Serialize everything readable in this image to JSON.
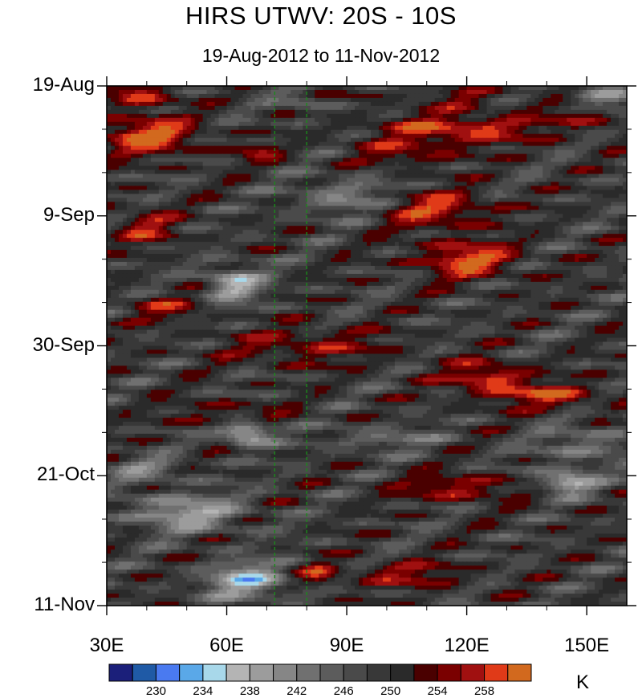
{
  "chart_data": {
    "type": "heatmap",
    "title": "HIRS UTWV: 20S - 10S",
    "subtitle": "19-Aug-2012 to 11-Nov-2012",
    "x": {
      "range": [
        30,
        160
      ],
      "ticks": [
        {
          "value": 30,
          "label": "30E"
        },
        {
          "value": 60,
          "label": "60E"
        },
        {
          "value": 90,
          "label": "90E"
        },
        {
          "value": 120,
          "label": "120E"
        },
        {
          "value": 150,
          "label": "150E"
        }
      ]
    },
    "y": {
      "range_days": [
        0,
        84
      ],
      "ticks": [
        {
          "value": 0,
          "label": "19-Aug"
        },
        {
          "value": 21,
          "label": "9-Sep"
        },
        {
          "value": 42,
          "label": "30-Sep"
        },
        {
          "value": 63,
          "label": "21-Oct"
        },
        {
          "value": 84,
          "label": "11-Nov"
        }
      ]
    },
    "reference_lines_x": [
      72,
      80
    ],
    "colorbar": {
      "units": "K",
      "levels": [
        228,
        230,
        232,
        234,
        236,
        238,
        240,
        242,
        244,
        246,
        248,
        250,
        252,
        254,
        256,
        258,
        260
      ],
      "labels": [
        "230",
        "234",
        "238",
        "242",
        "246",
        "250",
        "254",
        "258"
      ],
      "label_values": [
        230,
        234,
        238,
        242,
        246,
        250,
        254,
        258
      ],
      "colors": [
        "#1b1f7a",
        "#1f5aa6",
        "#4a7af0",
        "#5aa8e8",
        "#a8d8ea",
        "#b4b4b4",
        "#9c9c9c",
        "#868686",
        "#707070",
        "#5c5c5c",
        "#4a4a4a",
        "#383838",
        "#2a2a2a",
        "#4a0000",
        "#7a0000",
        "#a01010",
        "#e03a18",
        "#d2691e"
      ]
    },
    "field": {
      "base": 249,
      "features": [
        {
          "x": 38,
          "d": 1.5,
          "sx": 8,
          "sy": 2,
          "amp": 9
        },
        {
          "x": 85,
          "d": 1.5,
          "sx": 14,
          "sy": 1.5,
          "amp": 4
        },
        {
          "x": 120,
          "d": 2,
          "sx": 10,
          "sy": 1.5,
          "amp": 5
        },
        {
          "x": 40,
          "d": 8,
          "sx": 12,
          "sy": 3,
          "amp": 12
        },
        {
          "x": 118,
          "d": 7,
          "sx": 20,
          "sy": 2.5,
          "amp": 10
        },
        {
          "x": 150,
          "d": 5,
          "sx": 10,
          "sy": 2,
          "amp": 5
        },
        {
          "x": 105,
          "d": 11,
          "sx": 12,
          "sy": 2,
          "amp": 6
        },
        {
          "x": 68,
          "d": 11,
          "sx": 6,
          "sy": 1.5,
          "amp": 6
        },
        {
          "x": 112,
          "d": 20,
          "sx": 14,
          "sy": 3,
          "amp": 9
        },
        {
          "x": 120,
          "d": 28,
          "sx": 12,
          "sy": 3,
          "amp": 11
        },
        {
          "x": 40,
          "d": 23,
          "sx": 8,
          "sy": 3,
          "amp": 7
        },
        {
          "x": 45,
          "d": 36,
          "sx": 10,
          "sy": 2,
          "amp": 6
        },
        {
          "x": 125,
          "d": 47,
          "sx": 10,
          "sy": 2.5,
          "amp": 10
        },
        {
          "x": 140,
          "d": 50,
          "sx": 14,
          "sy": 2,
          "amp": 9
        },
        {
          "x": 80,
          "d": 42,
          "sx": 20,
          "sy": 3,
          "amp": 6
        },
        {
          "x": 60,
          "d": 53,
          "sx": 14,
          "sy": 2,
          "amp": 5
        },
        {
          "x": 118,
          "d": 65,
          "sx": 14,
          "sy": 2,
          "amp": 8
        },
        {
          "x": 105,
          "d": 79,
          "sx": 14,
          "sy": 2,
          "amp": 7
        },
        {
          "x": 83,
          "d": 79,
          "sx": 5,
          "sy": 2,
          "amp": 7
        },
        {
          "x": 62,
          "d": 32,
          "sx": 7,
          "sy": 3,
          "amp": -11
        },
        {
          "x": 65,
          "d": 56,
          "sx": 6,
          "sy": 2,
          "amp": -14
        },
        {
          "x": 145,
          "d": 64,
          "sx": 7,
          "sy": 2,
          "amp": -12
        },
        {
          "x": 50,
          "d": 69,
          "sx": 14,
          "sy": 3,
          "amp": -10
        },
        {
          "x": 65,
          "d": 80,
          "sx": 10,
          "sy": 3,
          "amp": -12
        },
        {
          "x": 90,
          "d": 18,
          "sx": 12,
          "sy": 3,
          "amp": -7
        },
        {
          "x": 80,
          "d": 2,
          "sx": 8,
          "sy": 2,
          "amp": -7
        },
        {
          "x": 155,
          "d": 2,
          "sx": 8,
          "sy": 2,
          "amp": -8
        },
        {
          "x": 150,
          "d": 58,
          "sx": 12,
          "sy": 3,
          "amp": -6
        },
        {
          "x": 40,
          "d": 62,
          "sx": 10,
          "sy": 2,
          "amp": -6
        },
        {
          "x": 100,
          "d": 57,
          "sx": 14,
          "sy": 2,
          "amp": -5
        }
      ]
    }
  }
}
